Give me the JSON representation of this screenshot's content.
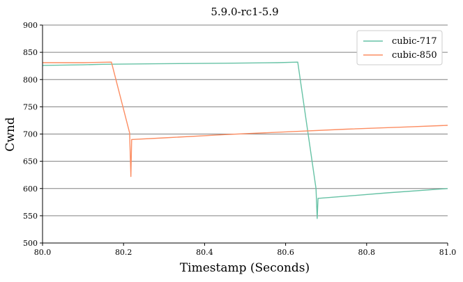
{
  "chart_data": {
    "type": "line",
    "title": "5.9.0-rc1-5.9",
    "xlabel": "Timestamp (Seconds)",
    "ylabel": "Cwnd",
    "xlim": [
      80.0,
      81.0
    ],
    "ylim": [
      500,
      900
    ],
    "xticks": [
      80.0,
      80.2,
      80.4,
      80.6,
      80.8,
      81.0
    ],
    "xtick_labels": [
      "80.0",
      "80.2",
      "80.4",
      "80.6",
      "80.8",
      "81.0"
    ],
    "yticks": [
      500,
      550,
      600,
      650,
      700,
      750,
      800,
      850,
      900
    ],
    "ytick_labels": [
      "500",
      "550",
      "600",
      "650",
      "700",
      "750",
      "800",
      "850",
      "900"
    ],
    "grid": "horizontal",
    "legend_position": "top-right",
    "series": [
      {
        "name": "cubic-717",
        "color": "#66c2a5",
        "x": [
          80.0,
          80.1,
          80.15,
          80.28,
          80.45,
          80.58,
          80.63,
          80.675,
          80.678,
          80.68,
          80.682,
          80.75,
          80.85,
          81.0
        ],
        "y": [
          826,
          827,
          828,
          829,
          830,
          831,
          832,
          600,
          545,
          582,
          582,
          586,
          592,
          600
        ]
      },
      {
        "name": "cubic-850",
        "color": "#fc8d62",
        "x": [
          80.0,
          80.1,
          80.17,
          80.215,
          80.218,
          80.22,
          80.222,
          80.3,
          80.45,
          80.6,
          80.75,
          80.9,
          81.0
        ],
        "y": [
          831,
          831,
          832,
          702,
          622,
          690,
          690,
          693,
          699,
          704,
          709,
          713,
          716
        ]
      }
    ]
  }
}
